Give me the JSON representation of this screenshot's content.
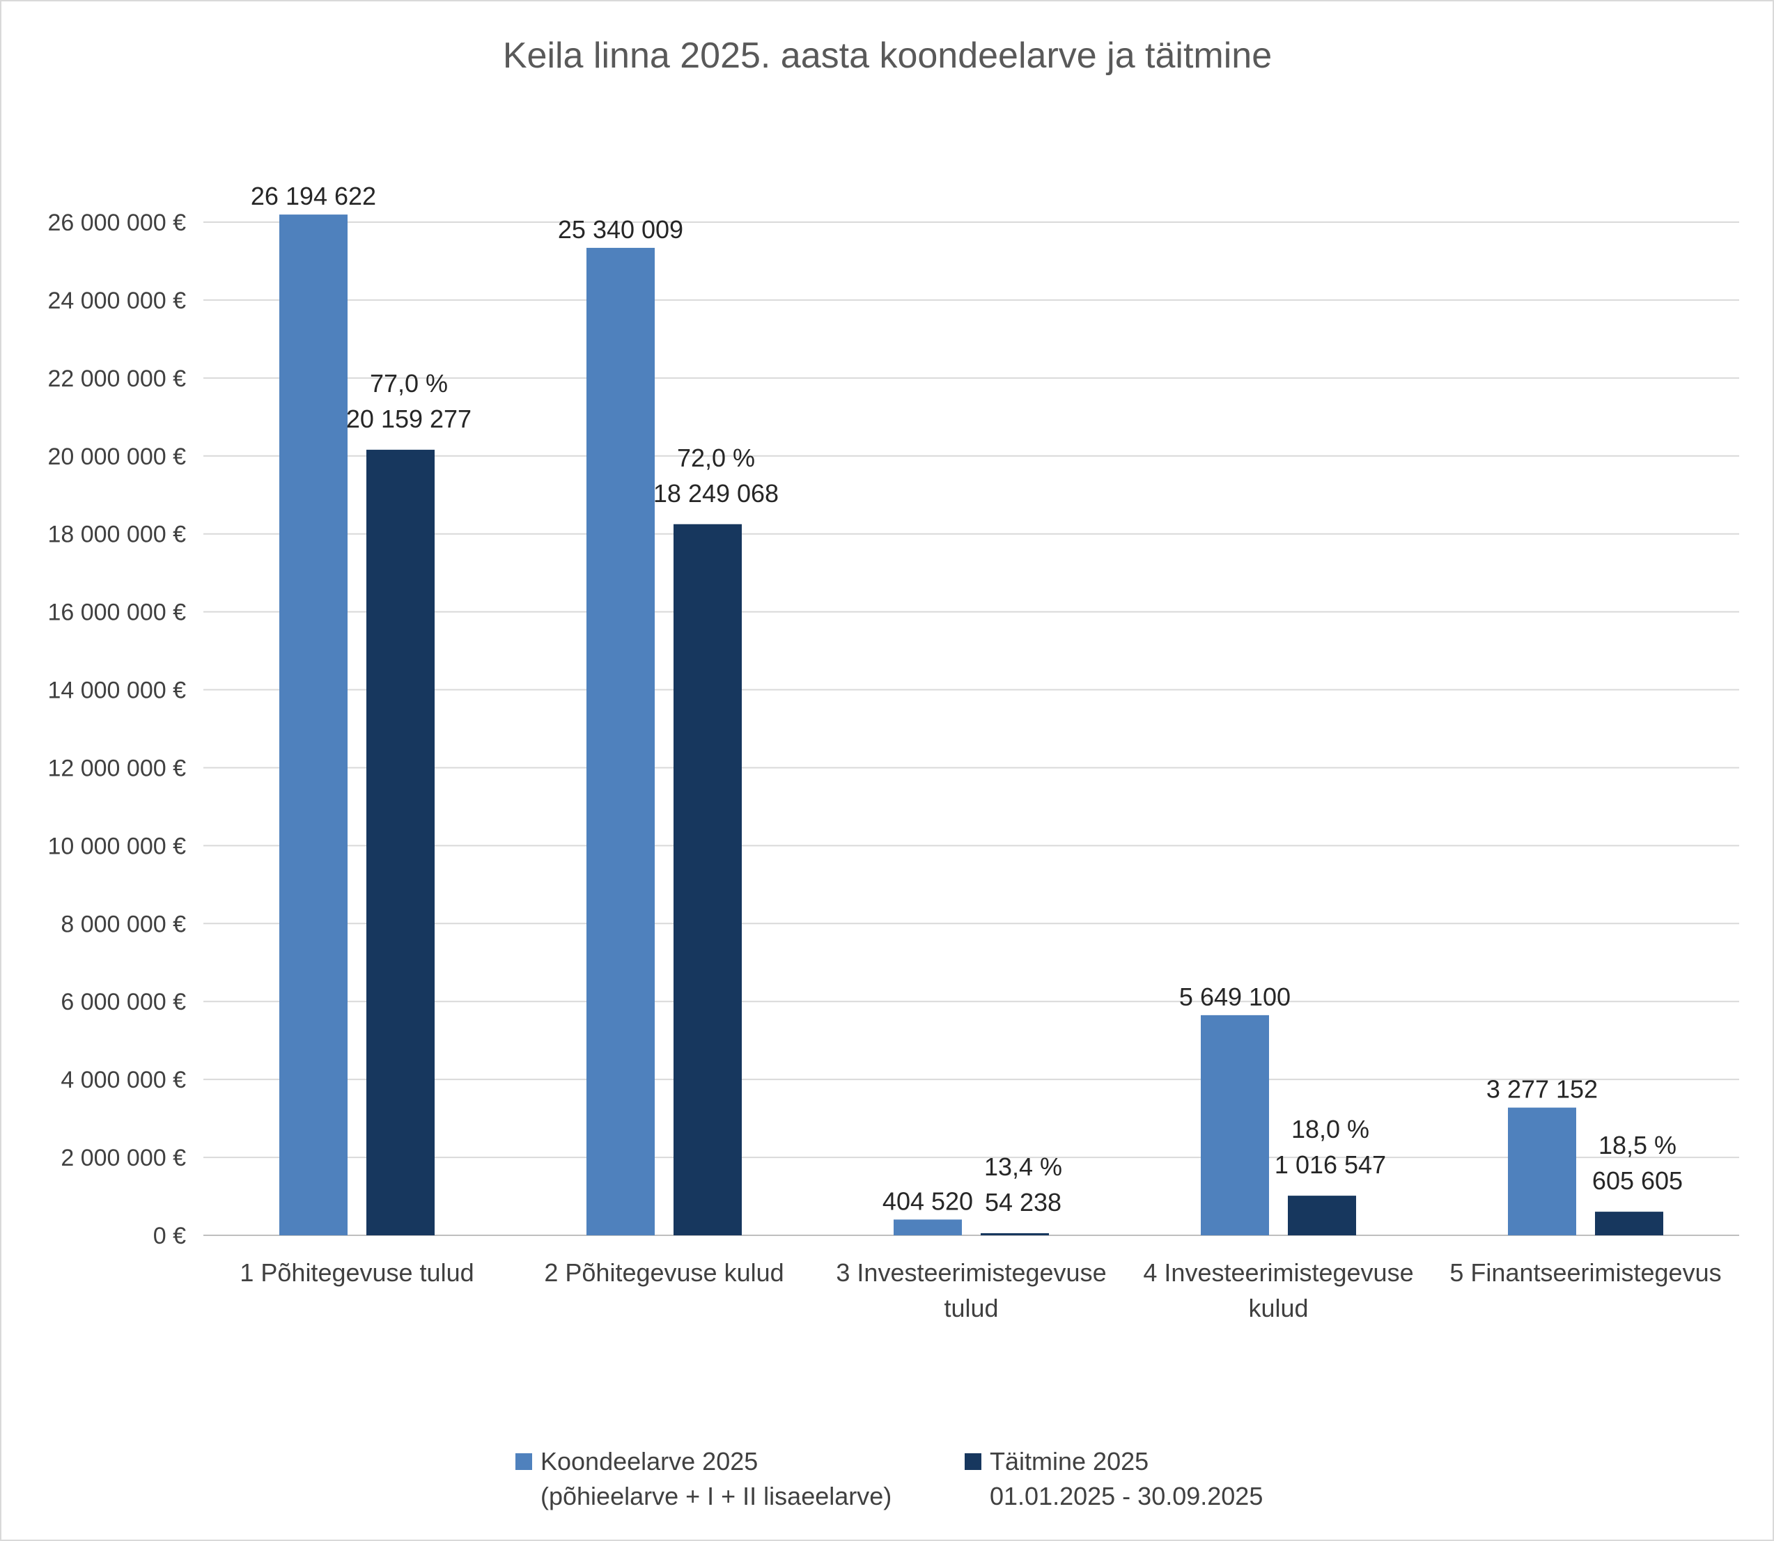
{
  "chart_data": {
    "type": "bar",
    "title": "Keila linna 2025. aasta koondeelarve ja täitmine",
    "xlabel": "",
    "ylabel": "",
    "ylim": [
      0,
      26000000
    ],
    "yticks": [
      0,
      2000000,
      4000000,
      6000000,
      8000000,
      10000000,
      12000000,
      14000000,
      16000000,
      18000000,
      20000000,
      22000000,
      24000000,
      26000000
    ],
    "ytick_labels": [
      "0 €",
      "2 000 000 €",
      "4 000 000 €",
      "6 000 000 €",
      "8 000 000 €",
      "10 000 000 €",
      "12 000 000 €",
      "14 000 000 €",
      "16 000 000 €",
      "18 000 000 €",
      "20 000 000 €",
      "22 000 000 €",
      "24 000 000 €",
      "26 000 000 €"
    ],
    "grid": true,
    "legend_position": "bottom",
    "categories": [
      [
        "1 Põhitegevuse tulud"
      ],
      [
        "2 Põhitegevuse kulud"
      ],
      [
        "3 Investeerimistegevuse",
        "tulud"
      ],
      [
        "4 Investeerimistegevuse",
        "kulud"
      ],
      [
        "5 Finantseerimistegevus"
      ]
    ],
    "series": [
      {
        "name": "Koondeelarve 2025",
        "legend_lines": [
          "Koondeelarve 2025",
          "(põhieelarve + I + II lisaeelarve)"
        ],
        "color": "#4f81bd",
        "values": [
          26194622,
          25340009,
          404520,
          5649100,
          3277152
        ],
        "value_labels": [
          "26 194 622",
          "25 340 009",
          "404 520",
          "5 649 100",
          "3 277 152"
        ]
      },
      {
        "name": "Täitmine 2025",
        "legend_lines": [
          "Täitmine 2025",
          "01.01.2025 - 30.09.2025"
        ],
        "color": "#17375e",
        "values": [
          20159277,
          18249068,
          54238,
          1016547,
          605605
        ],
        "value_labels": [
          "20 159 277",
          "18 249 068",
          "54 238",
          "1 016 547",
          "605 605"
        ],
        "percent_labels": [
          "77,0 %",
          "72,0 %",
          "13,4 %",
          "18,0 %",
          "18,5 %"
        ]
      }
    ]
  }
}
